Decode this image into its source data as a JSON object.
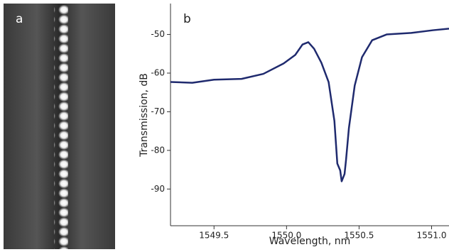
{
  "image_label": "a",
  "chart_data": {
    "type": "line",
    "panel_label": "b",
    "xlabel": "Wavelength, nm",
    "ylabel": "Transmission, dB",
    "xlim": [
      1549.2,
      1551.12
    ],
    "ylim": [
      -99.5,
      -42
    ],
    "xticks": [
      1549.5,
      {
        "value": 1550.0,
        "label": "1550.0"
      },
      1550.5,
      {
        "value": 1551.0,
        "label": "1551.0"
      }
    ],
    "yticks": [
      -50,
      -60,
      -70,
      -80,
      -90
    ],
    "series": [
      {
        "color": "#1f2a6e",
        "x": [
          1549.2,
          1549.35,
          1549.5,
          1549.69,
          1549.84,
          1549.98,
          1550.06,
          1550.11,
          1550.15,
          1550.19,
          1550.24,
          1550.29,
          1550.33,
          1550.35,
          1550.37,
          1550.38,
          1550.4,
          1550.41,
          1550.43,
          1550.47,
          1550.52,
          1550.59,
          1550.69,
          1550.86,
          1551.01,
          1551.12
        ],
        "values": [
          -62.3,
          -62.5,
          -61.7,
          -61.5,
          -60.2,
          -57.5,
          -55.3,
          -52.6,
          -52,
          -53.7,
          -57.3,
          -62.3,
          -72.4,
          -83.4,
          -85.2,
          -88,
          -86.1,
          -82.5,
          -74.2,
          -63.2,
          -55.9,
          -51.5,
          -50,
          -49.6,
          -48.9,
          -48.5
        ]
      }
    ]
  }
}
